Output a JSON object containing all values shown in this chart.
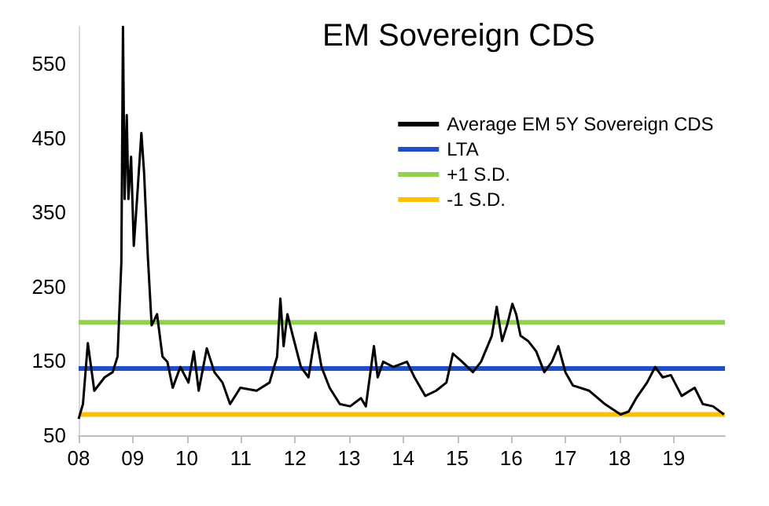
{
  "chart_data": {
    "type": "line",
    "title": "EM Sovereign CDS",
    "xlim": [
      2008,
      2019.95
    ],
    "xticks": [
      {
        "value": 2008,
        "label": "08"
      },
      {
        "value": 2009,
        "label": "09"
      },
      {
        "value": 2010,
        "label": "10"
      },
      {
        "value": 2011,
        "label": "11"
      },
      {
        "value": 2012,
        "label": "12"
      },
      {
        "value": 2013,
        "label": "13"
      },
      {
        "value": 2014,
        "label": "14"
      },
      {
        "value": 2015,
        "label": "15"
      },
      {
        "value": 2016,
        "label": "16"
      },
      {
        "value": 2017,
        "label": "17"
      },
      {
        "value": 2018,
        "label": "18"
      },
      {
        "value": 2019,
        "label": "19"
      }
    ],
    "ylim": [
      50,
      600
    ],
    "yticks": [
      50,
      150,
      250,
      350,
      450,
      550
    ],
    "grid": false,
    "legend": "top right",
    "marker": "none",
    "series": [
      {
        "name": "Average EM 5Y Sovereign CDS",
        "color": "#000000",
        "x": [
          2008.0,
          2008.08,
          2008.17,
          2008.29,
          2008.48,
          2008.63,
          2008.72,
          2008.79,
          2008.82,
          2008.85,
          2008.89,
          2008.92,
          2008.97,
          2009.02,
          2009.08,
          2009.16,
          2009.21,
          2009.28,
          2009.35,
          2009.45,
          2009.55,
          2009.64,
          2009.74,
          2009.88,
          2010.03,
          2010.13,
          2010.22,
          2010.37,
          2010.51,
          2010.66,
          2010.8,
          2010.99,
          2011.29,
          2011.53,
          2011.67,
          2011.73,
          2011.79,
          2011.86,
          2011.96,
          2012.11,
          2012.25,
          2012.38,
          2012.49,
          2012.64,
          2012.83,
          2013.02,
          2013.22,
          2013.31,
          2013.46,
          2013.53,
          2013.63,
          2013.82,
          2014.07,
          2014.21,
          2014.41,
          2014.61,
          2014.8,
          2014.92,
          2015.09,
          2015.29,
          2015.44,
          2015.64,
          2015.73,
          2015.83,
          2015.92,
          2016.02,
          2016.09,
          2016.17,
          2016.31,
          2016.46,
          2016.61,
          2016.75,
          2016.87,
          2017.0,
          2017.14,
          2017.44,
          2017.73,
          2018.02,
          2018.17,
          2018.31,
          2018.51,
          2018.66,
          2018.8,
          2018.95,
          2019.15,
          2019.39,
          2019.54,
          2019.73,
          2019.93
        ],
        "values": [
          72,
          92,
          174,
          110,
          128,
          135,
          156,
          283,
          600,
          368,
          481,
          368,
          425,
          305,
          368,
          457,
          404,
          290,
          198,
          213,
          156,
          149,
          114,
          142,
          121,
          163,
          110,
          167,
          135,
          121,
          92,
          114,
          110,
          121,
          156,
          234,
          170,
          213,
          184,
          142,
          128,
          188,
          142,
          114,
          92,
          89,
          100,
          89,
          170,
          128,
          149,
          142,
          149,
          128,
          103,
          110,
          121,
          160,
          149,
          135,
          149,
          184,
          223,
          177,
          198,
          227,
          213,
          184,
          177,
          163,
          135,
          149,
          170,
          135,
          117,
          110,
          92,
          78,
          82,
          100,
          121,
          142,
          128,
          131,
          103,
          114,
          92,
          89,
          78
        ]
      },
      {
        "name": "LTA",
        "color": "#1f4fc4",
        "x": [
          2008,
          2019.95
        ],
        "values": [
          140,
          140
        ]
      },
      {
        "name": "+1 S.D.",
        "color": "#92d050",
        "x": [
          2008,
          2019.95
        ],
        "values": [
          202,
          202
        ]
      },
      {
        "name": "-1 S.D.",
        "color": "#ffc000",
        "x": [
          2008,
          2019.95
        ],
        "values": [
          78,
          78
        ]
      }
    ]
  }
}
